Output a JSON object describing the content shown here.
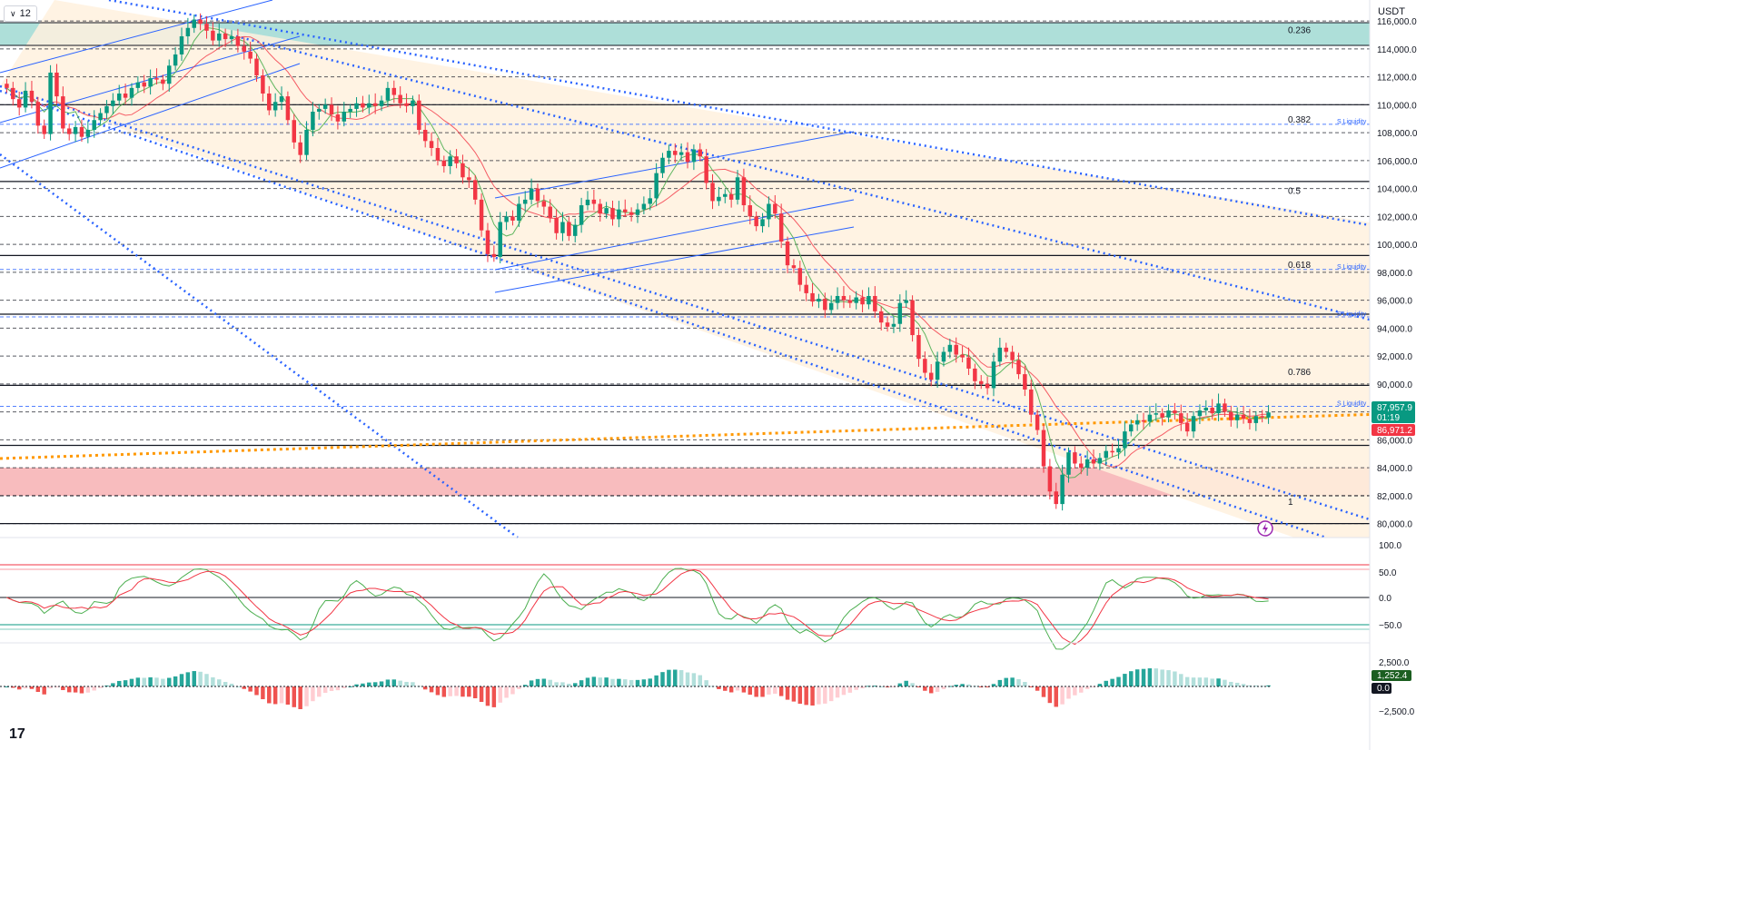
{
  "header": {
    "interval_label": "12",
    "currency": "USDT"
  },
  "price_axis": {
    "ticks": [
      "116,000.0",
      "114,000.0",
      "112,000.0",
      "110,000.0",
      "108,000.0",
      "106,000.0",
      "104,000.0",
      "102,000.0",
      "100,000.0",
      "98,000.0",
      "96,000.0",
      "94,000.0",
      "92,000.0",
      "90,000.0",
      "88,000.0",
      "86,000.0",
      "84,000.0",
      "82,000.0",
      "80,000.0"
    ],
    "last_price_label": "87,957.9",
    "countdown_label": "01:19",
    "ma_price_label": "86,971.2"
  },
  "fib_labels": [
    "0.236",
    "0.382",
    "0.5",
    "0.618",
    "0.786",
    "1"
  ],
  "liquidity_label": "S Liquidity",
  "oscillator": {
    "ticks": [
      "100.0",
      "50.0",
      "0.0",
      "−50.0"
    ]
  },
  "macd": {
    "ticks": [
      "2,500.0",
      "0.0",
      "−2,500.0"
    ],
    "value_label": "1,252.4",
    "zero_label": "0.0"
  },
  "colors": {
    "up": "#089981",
    "down": "#f23645",
    "trend": "#2962ff",
    "ma_orange": "#ff9800",
    "fib_green": "#4db6ac",
    "fib_red": "#f77c80",
    "zone": "#fff1de"
  },
  "chart_data": {
    "type": "candlestick",
    "y_range": [
      79000,
      117500
    ],
    "fib_levels": [
      {
        "label": "0.236",
        "value": 115000
      },
      {
        "label": "0.382",
        "value": 108600
      },
      {
        "label": "0.5",
        "value": 103500
      },
      {
        "label": "0.618",
        "value": 98200
      },
      {
        "label": "0.786",
        "value": 90500
      },
      {
        "label": "1",
        "value": 81200
      }
    ],
    "liquidity_levels": [
      108600,
      98200,
      94800,
      88400
    ],
    "last_price": 87957.9,
    "ma_value": 86971.2,
    "closes": [
      111200,
      110400,
      109800,
      111000,
      110200,
      108500,
      107900,
      112300,
      110600,
      108300,
      107900,
      108400,
      107700,
      108200,
      108900,
      109400,
      109900,
      110300,
      110800,
      110500,
      111200,
      111600,
      111300,
      111900,
      111800,
      111500,
      112800,
      113600,
      114900,
      115500,
      116100,
      115800,
      115300,
      114600,
      115100,
      114700,
      114900,
      114200,
      113800,
      113300,
      112100,
      110800,
      109600,
      110200,
      110600,
      108900,
      107300,
      106400,
      108200,
      109500,
      109700,
      110000,
      109300,
      108800,
      109500,
      109700,
      110100,
      109800,
      110100,
      109900,
      110300,
      111200,
      110700,
      110100,
      109900,
      110300,
      108200,
      107400,
      106900,
      106000,
      105600,
      106300,
      105800,
      104800,
      104600,
      103200,
      101000,
      99300,
      99100,
      101600,
      102000,
      101700,
      102900,
      103200,
      104000,
      103100,
      102700,
      101900,
      100800,
      101600,
      100600,
      101400,
      102800,
      103200,
      102900,
      102200,
      102600,
      101800,
      102500,
      102300,
      102100,
      102500,
      102900,
      103300,
      105100,
      106200,
      106700,
      106400,
      106600,
      105900,
      106800,
      106300,
      104400,
      103100,
      103400,
      103600,
      103200,
      104800,
      102800,
      102000,
      101300,
      101800,
      102900,
      102200,
      100200,
      98500,
      98300,
      97100,
      96500,
      95900,
      96100,
      95300,
      95800,
      96300,
      96000,
      95800,
      96200,
      95700,
      96300,
      95200,
      94400,
      94100,
      94300,
      95800,
      96000,
      93500,
      91800,
      90800,
      90300,
      91600,
      92300,
      92800,
      92100,
      91900,
      91100,
      90200,
      90000,
      89700,
      91600,
      92600,
      92300,
      91700,
      90700,
      89600,
      87800,
      86700,
      84100,
      82300,
      81400,
      83500,
      85100,
      84300,
      84000,
      84600,
      84300,
      84700,
      85200,
      85100,
      85400,
      86600,
      87100,
      87400,
      87300,
      87800,
      87900,
      87600,
      88100,
      87900,
      87200,
      86600,
      87700,
      88100,
      88300,
      87900,
      88600,
      88000,
      87400,
      87800,
      87500,
      87200,
      87700,
      87600,
      87958
    ]
  }
}
